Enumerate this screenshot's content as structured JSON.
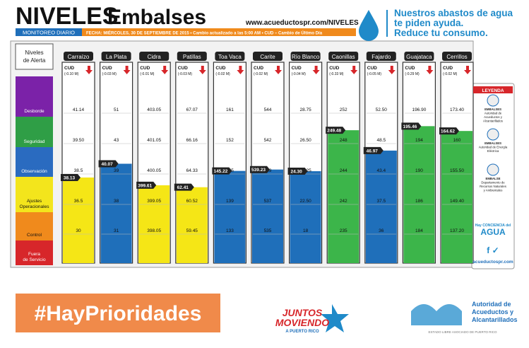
{
  "header": {
    "title_bold": "NIVELES",
    "title_light": "Embalses",
    "url": "www.acueductospr.com/NIVELES",
    "subtitle": "MONITOREO DIARIO",
    "date_line": "FECHA: MIÉRCOLES, 30 DE SEPTIEMBRE DE 2015 • Cambio actualizado a las 5:00 AM • CUD – Cambio de Último Día",
    "message": [
      "Nuestros abastos de agua",
      "te piden ayuda.",
      "Reduce tu consumo."
    ]
  },
  "alert_levels": {
    "title": [
      "Niveles",
      "de Alerta"
    ],
    "levels": [
      {
        "name": [
          "Desborde"
        ],
        "color": "#7b22a8",
        "fill": "#9b4dc4"
      },
      {
        "name": [
          "Seguridad"
        ],
        "color": "#2f9e46",
        "fill": "#3cb54a"
      },
      {
        "name": [
          "Observación"
        ],
        "color": "#2a6bc0",
        "fill": "#1f6fba"
      },
      {
        "name": [
          "Ajustes",
          "Operacionales"
        ],
        "color": "#f3e51c",
        "fill": "#f5e616"
      },
      {
        "name": [
          "Control"
        ],
        "color": "#f08a1c",
        "fill": "#f08a1c"
      },
      {
        "name": [
          "Fuera",
          "de Servicio"
        ],
        "color": "#d7262a",
        "fill": "#d7262a"
      }
    ]
  },
  "reservoirs": [
    {
      "name": "Carraízo",
      "cud_label": "CUD",
      "cud": "(-0.10 M)",
      "thresholds": [
        41.14,
        {
          "value": 39.5,
          "label": "39.50"
        },
        38.5,
        36.5,
        30
      ],
      "level": 38.13
    },
    {
      "name": "La Plata",
      "cud_label": "CUD",
      "cud": "(-0.03 M)",
      "thresholds": [
        51,
        43,
        39,
        38,
        31
      ],
      "level": 40.07
    },
    {
      "name": "Cidra",
      "cud_label": "CUD",
      "cud": "(-0.01 M)",
      "thresholds": [
        403.05,
        401.05,
        400.05,
        399.05,
        398.05
      ],
      "level": 399.61
    },
    {
      "name": "Patillas",
      "cud_label": "CUD",
      "cud": "(-0.03 M)",
      "thresholds": [
        67.07,
        66.16,
        64.33,
        60.52,
        59.45
      ],
      "level": 62.41
    },
    {
      "name": "Toa Vaca",
      "cud_label": "CUD",
      "cud": "(-0.02 M)",
      "thresholds": [
        161,
        152,
        145,
        139,
        133
      ],
      "level": 145.22
    },
    {
      "name": "Carite",
      "cud_label": "CUD",
      "cud": "(-0.02 M)",
      "thresholds": [
        544,
        542,
        539,
        537,
        535
      ],
      "level": 539.23
    },
    {
      "name": "Río Blanco",
      "cud_label": "CUD",
      "cud": "(-0.04 M)",
      "thresholds": [
        28.75,
        {
          "value": 26.5,
          "label": "26.50"
        },
        24.25,
        {
          "value": 22.5,
          "label": "22.50"
        },
        18
      ],
      "level": {
        "value": 24.3,
        "label": "24.30"
      }
    },
    {
      "name": "Caonillas",
      "cud_label": "CUD",
      "cud": "(-0.33 M)",
      "thresholds": [
        252,
        248,
        244,
        242,
        235
      ],
      "level": 249.48
    },
    {
      "name": "Fajardo",
      "cud_label": "CUD",
      "cud": "(-0.05 M)",
      "thresholds": [
        {
          "value": 52.5,
          "label": "52.50"
        },
        48.5,
        43.4,
        37.5,
        36
      ],
      "level": 46.97
    },
    {
      "name": "Guajataca",
      "cud_label": "CUD",
      "cud": "(-0.29 M)",
      "thresholds": [
        {
          "value": 196.9,
          "label": "196.90"
        },
        194,
        190,
        186,
        184
      ],
      "level": 195.46
    },
    {
      "name": "Cerrillos",
      "cud_label": "CUD",
      "cud": "(-0.02 M)",
      "thresholds": [
        {
          "value": 173.4,
          "label": "173.40"
        },
        160,
        {
          "value": 155.5,
          "label": "155.50"
        },
        {
          "value": 149.4,
          "label": "149.40"
        },
        {
          "value": 137.2,
          "label": "137.20"
        }
      ],
      "level": 164.62
    }
  ],
  "legend": {
    "title": "LEYENDA",
    "items": [
      [
        "EMBALSES",
        "Autoridad de",
        "Acueductos y",
        "Alcantarillados"
      ],
      [
        "EMBALSES",
        "Autoridad de Energía",
        "Eléctrica"
      ],
      [
        "EMBALSE",
        "Departamento de",
        "Recursos Naturales",
        "y Ambientales"
      ]
    ],
    "campaign": [
      "Hay CONCIENCIA del",
      "AGUA"
    ],
    "url": "acueductospr.com"
  },
  "footer": {
    "hashtag": "#HayPrioridades",
    "slogan": [
      "JUNTOS",
      "MOVIENDO",
      "A PUERTO RICO"
    ],
    "agency": [
      "Autoridad de",
      "Acueductos y",
      "Alcantarillados"
    ],
    "state": "ESTADO LIBRE ASOCIADO DE PUERTO RICO"
  }
}
